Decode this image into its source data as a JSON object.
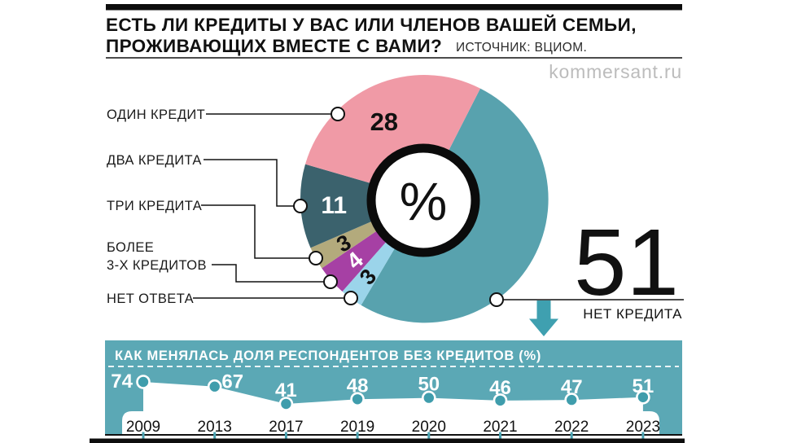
{
  "header": {
    "title_line1": "ЕСТЬ ЛИ КРЕДИТЫ У ВАС ИЛИ ЧЛЕНОВ ВАШЕЙ СЕМЬИ,",
    "title_line2": "ПРОЖИВАЮЩИХ ВМЕСТЕ С ВАМИ?",
    "source": "ИСТОЧНИК: ВЦИОМ.",
    "watermark": "kommersant.ru"
  },
  "legend": {
    "items": [
      {
        "label": "ОДИН КРЕДИТ"
      },
      {
        "label": "ДВА КРЕДИТА"
      },
      {
        "label": "ТРИ КРЕДИТА"
      },
      {
        "label": "БОЛЕЕ",
        "label2": "3-Х КРЕДИТОВ"
      },
      {
        "label": "НЕТ ОТВЕТА"
      }
    ]
  },
  "callout": {
    "value": "51",
    "label": "НЕТ КРЕДИТА"
  },
  "colors": {
    "pink": "#f09aa6",
    "teal_big": "#58a2ae",
    "dark_slate": "#3b626d",
    "olive": "#b3aa7c",
    "purple": "#a640a4",
    "light_blue": "#9bd4ea",
    "panel_teal": "#5ba8b5",
    "arrow_teal": "#3fa0b0",
    "marker_teal": "#3f9dac",
    "black": "#111111",
    "white": "#ffffff"
  },
  "chart_data": [
    {
      "type": "pie",
      "unit": "%",
      "start_angle_deg": 27,
      "slices": [
        {
          "label": "ОДИН КРЕДИТ",
          "value": 28,
          "color": "#f09aa6",
          "label_color": "#111111"
        },
        {
          "label": "ДВА КРЕДИТА",
          "value": 11,
          "color": "#3b626d",
          "label_color": "#ffffff"
        },
        {
          "label": "ТРИ КРЕДИТА",
          "value": 3,
          "color": "#b3aa7c",
          "label_color": "#111111"
        },
        {
          "label": "БОЛЕЕ 3-Х КРЕДИТОВ",
          "value": 4,
          "color": "#a640a4",
          "label_color": "#ffffff"
        },
        {
          "label": "НЕТ ОТВЕТА",
          "value": 3,
          "color": "#9bd4ea",
          "label_color": "#111111"
        },
        {
          "label": "НЕТ КРЕДИТА",
          "value": 51,
          "color": "#58a2ae",
          "label_color": null
        }
      ]
    },
    {
      "type": "line",
      "title": "КАК МЕНЯЛАСЬ ДОЛЯ РЕСПОНДЕНТОВ БЕЗ КРЕДИТОВ (%)",
      "x": [
        "2009",
        "2013",
        "2017",
        "2019",
        "2020",
        "2021",
        "2022",
        "2023"
      ],
      "values": [
        74,
        67,
        41,
        48,
        50,
        46,
        47,
        51
      ],
      "ylim": [
        41,
        74
      ],
      "legend_position": "none",
      "grid": false
    }
  ]
}
